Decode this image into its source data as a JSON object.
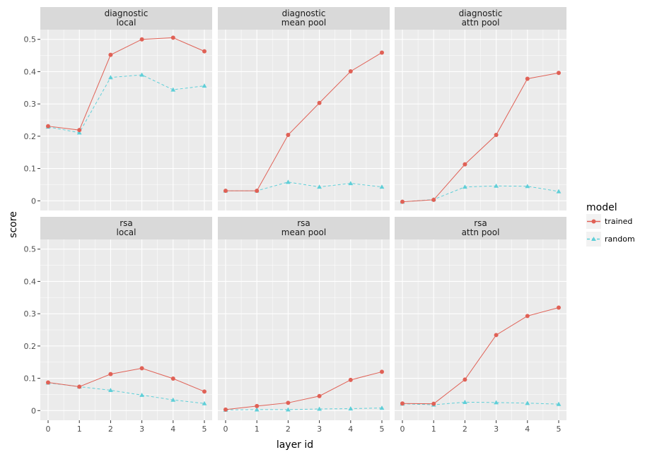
{
  "chart_data": {
    "type": "line",
    "xlabel": "layer id",
    "ylabel": "score",
    "x": [
      0,
      1,
      2,
      3,
      4,
      5
    ],
    "ylim": [
      -0.03,
      0.53
    ],
    "yticks": [
      0,
      0.1,
      0.2,
      0.3,
      0.4,
      0.5
    ],
    "ytick_labels": [
      "0",
      "0.1",
      "0.2",
      "0.3",
      "0.4",
      "0.5"
    ],
    "xticks": [
      "0",
      "1",
      "2",
      "3",
      "4",
      "5"
    ],
    "grid": true,
    "legend": {
      "title": "model",
      "position": "right",
      "entries": [
        {
          "label": "trained",
          "color": "#e06156",
          "marker": "circle",
          "line": "solid"
        },
        {
          "label": "random",
          "color": "#5fcfd8",
          "marker": "triangle",
          "line": "dashed"
        }
      ]
    },
    "panels": [
      {
        "row": 0,
        "col": 0,
        "strip": [
          "diagnostic",
          "local"
        ],
        "series": [
          {
            "name": "trained",
            "values": [
              0.231,
              0.219,
              0.452,
              0.5,
              0.505,
              0.463
            ]
          },
          {
            "name": "random",
            "values": [
              0.229,
              0.211,
              0.382,
              0.39,
              0.344,
              0.356
            ]
          }
        ]
      },
      {
        "row": 0,
        "col": 1,
        "strip": [
          "diagnostic",
          "mean pool"
        ],
        "series": [
          {
            "name": "trained",
            "values": [
              0.031,
              0.031,
              0.204,
              0.303,
              0.401,
              0.459
            ]
          },
          {
            "name": "random",
            "values": [
              0.031,
              0.031,
              0.058,
              0.043,
              0.054,
              0.043
            ]
          }
        ]
      },
      {
        "row": 0,
        "col": 2,
        "strip": [
          "diagnostic",
          "attn pool"
        ],
        "series": [
          {
            "name": "trained",
            "values": [
              -0.003,
              0.003,
              0.113,
              0.204,
              0.378,
              0.396
            ]
          },
          {
            "name": "random",
            "values": [
              -0.003,
              0.004,
              0.043,
              0.046,
              0.045,
              0.029
            ]
          }
        ]
      },
      {
        "row": 1,
        "col": 0,
        "strip": [
          "rsa",
          "local"
        ],
        "series": [
          {
            "name": "trained",
            "values": [
              0.087,
              0.074,
              0.113,
              0.131,
              0.099,
              0.059
            ]
          },
          {
            "name": "random",
            "values": [
              0.086,
              0.074,
              0.063,
              0.048,
              0.033,
              0.022
            ]
          }
        ]
      },
      {
        "row": 1,
        "col": 1,
        "strip": [
          "rsa",
          "mean pool"
        ],
        "series": [
          {
            "name": "trained",
            "values": [
              0.003,
              0.014,
              0.024,
              0.045,
              0.095,
              0.12
            ]
          },
          {
            "name": "random",
            "values": [
              0.002,
              0.003,
              0.003,
              0.005,
              0.006,
              0.008
            ]
          }
        ]
      },
      {
        "row": 1,
        "col": 2,
        "strip": [
          "rsa",
          "attn pool"
        ],
        "series": [
          {
            "name": "trained",
            "values": [
              0.022,
              0.021,
              0.096,
              0.234,
              0.293,
              0.319
            ]
          },
          {
            "name": "random",
            "values": [
              0.021,
              0.018,
              0.026,
              0.025,
              0.023,
              0.02
            ]
          }
        ]
      }
    ]
  }
}
